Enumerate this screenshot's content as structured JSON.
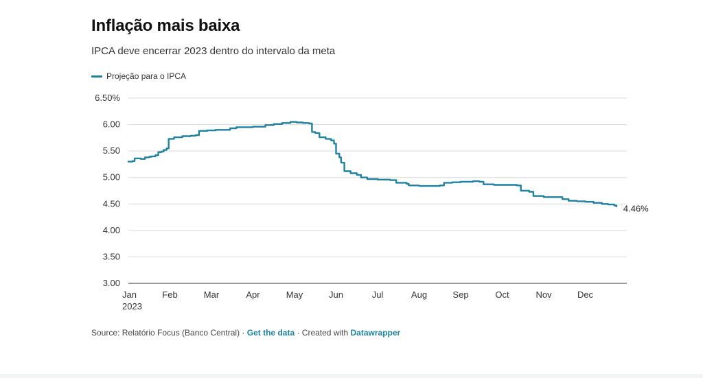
{
  "chart_data": {
    "type": "line",
    "title": "Inflação mais baixa",
    "subtitle": "IPCA deve encerrar 2023 dentro do intervalo da meta",
    "x_ticks": [
      "Jan",
      "Feb",
      "Mar",
      "Apr",
      "May",
      "Jun",
      "Jul",
      "Aug",
      "Sep",
      "Oct",
      "Nov",
      "Dec"
    ],
    "x_year_label": "2023",
    "y_ticks": [
      "6.50%",
      "6.00",
      "5.50",
      "5.00",
      "4.50",
      "4.00",
      "3.50",
      "3.00"
    ],
    "ylim": [
      3.0,
      6.5
    ],
    "xlim": [
      0,
      12
    ],
    "grid": true,
    "legend": "top-left",
    "end_label": "4.46%",
    "series": [
      {
        "name": "Projeção para o IPCA",
        "color": "#1d81a2",
        "points": [
          [
            0.0,
            5.3
          ],
          [
            0.1,
            5.31
          ],
          [
            0.15,
            5.36
          ],
          [
            0.3,
            5.35
          ],
          [
            0.4,
            5.38
          ],
          [
            0.5,
            5.39
          ],
          [
            0.55,
            5.4
          ],
          [
            0.65,
            5.42
          ],
          [
            0.72,
            5.48
          ],
          [
            0.8,
            5.49
          ],
          [
            0.85,
            5.52
          ],
          [
            0.92,
            5.55
          ],
          [
            0.97,
            5.73
          ],
          [
            1.1,
            5.76
          ],
          [
            1.3,
            5.78
          ],
          [
            1.5,
            5.79
          ],
          [
            1.62,
            5.8
          ],
          [
            1.7,
            5.88
          ],
          [
            1.9,
            5.89
          ],
          [
            2.1,
            5.9
          ],
          [
            2.3,
            5.9
          ],
          [
            2.45,
            5.93
          ],
          [
            2.6,
            5.95
          ],
          [
            2.8,
            5.95
          ],
          [
            3.0,
            5.96
          ],
          [
            3.2,
            5.96
          ],
          [
            3.3,
            5.99
          ],
          [
            3.5,
            6.01
          ],
          [
            3.7,
            6.03
          ],
          [
            3.9,
            6.05
          ],
          [
            4.05,
            6.04
          ],
          [
            4.2,
            6.03
          ],
          [
            4.35,
            6.02
          ],
          [
            4.42,
            5.86
          ],
          [
            4.5,
            5.84
          ],
          [
            4.6,
            5.76
          ],
          [
            4.75,
            5.73
          ],
          [
            4.88,
            5.7
          ],
          [
            4.95,
            5.64
          ],
          [
            5.0,
            5.45
          ],
          [
            5.08,
            5.38
          ],
          [
            5.12,
            5.28
          ],
          [
            5.2,
            5.12
          ],
          [
            5.35,
            5.08
          ],
          [
            5.5,
            5.05
          ],
          [
            5.6,
            5.0
          ],
          [
            5.75,
            4.97
          ],
          [
            6.0,
            4.96
          ],
          [
            6.3,
            4.95
          ],
          [
            6.45,
            4.9
          ],
          [
            6.7,
            4.88
          ],
          [
            6.75,
            4.85
          ],
          [
            7.0,
            4.84
          ],
          [
            7.3,
            4.84
          ],
          [
            7.5,
            4.85
          ],
          [
            7.6,
            4.9
          ],
          [
            7.8,
            4.91
          ],
          [
            8.0,
            4.92
          ],
          [
            8.3,
            4.93
          ],
          [
            8.45,
            4.92
          ],
          [
            8.55,
            4.87
          ],
          [
            8.8,
            4.86
          ],
          [
            9.2,
            4.86
          ],
          [
            9.35,
            4.85
          ],
          [
            9.45,
            4.75
          ],
          [
            9.65,
            4.73
          ],
          [
            9.75,
            4.65
          ],
          [
            10.0,
            4.63
          ],
          [
            10.3,
            4.63
          ],
          [
            10.45,
            4.59
          ],
          [
            10.6,
            4.56
          ],
          [
            10.8,
            4.55
          ],
          [
            11.0,
            4.54
          ],
          [
            11.2,
            4.52
          ],
          [
            11.4,
            4.5
          ],
          [
            11.55,
            4.49
          ],
          [
            11.7,
            4.47
          ],
          [
            11.75,
            4.46
          ]
        ]
      }
    ]
  },
  "footer": {
    "source_text": "Source: Relatório Focus (Banco Central) · ",
    "get_data": "Get the data",
    "created_with": " · Created with ",
    "datawrapper": "Datawrapper"
  }
}
